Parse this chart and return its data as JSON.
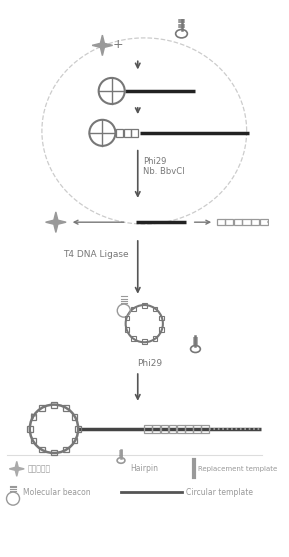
{
  "background_color": "#ffffff",
  "gray1": "#555555",
  "gray2": "#777777",
  "gray3": "#999999",
  "gray4": "#aaaaaa",
  "gray5": "#cccccc",
  "labels": {
    "phi29_nb": "Phi29\nNb. BbvCI",
    "t4_ligase": "T4 DNA Ligase",
    "phi29": "Phi29",
    "ampicillin_cn": "氪苳青霉素",
    "hairpin": "Hairpin",
    "replacement": "Replacement template",
    "mol_beacon": "Molecular beacon",
    "circular": "Circular template"
  }
}
